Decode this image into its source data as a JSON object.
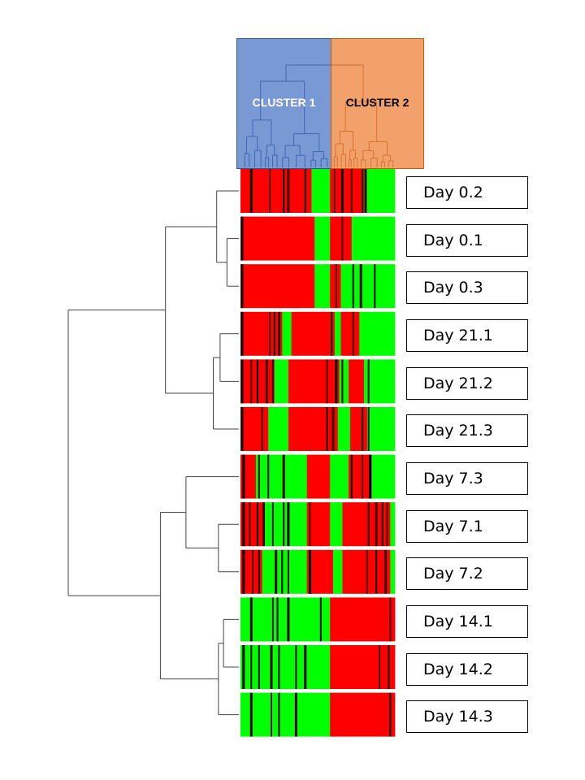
{
  "chart_data": {
    "type": "heatmap",
    "colors": {
      "low": "#00ff00",
      "high": "#ff0000",
      "mid": "#000000"
    },
    "column_clusters": [
      {
        "name": "CLUSTER 1",
        "color": "#4472c4"
      },
      {
        "name": "CLUSTER 2",
        "color": "#ed7d31"
      }
    ],
    "rows": [
      {
        "label": "Day 0.2",
        "segments": [
          [
            0,
            0.46,
            "high"
          ],
          [
            0.46,
            0.58,
            "low"
          ],
          [
            0.58,
            0.8,
            "high"
          ],
          [
            0.8,
            1,
            "low"
          ]
        ],
        "marks": [
          0.07,
          0.19,
          0.28,
          0.31,
          0.42,
          0.61,
          0.66,
          0.72,
          0.79,
          0.81
        ]
      },
      {
        "label": "Day 0.1",
        "segments": [
          [
            0,
            0.48,
            "high"
          ],
          [
            0.48,
            0.58,
            "low"
          ],
          [
            0.58,
            0.72,
            "high"
          ],
          [
            0.72,
            1,
            "low"
          ]
        ],
        "marks": [
          0.01,
          0.66
        ]
      },
      {
        "label": "Day 0.3",
        "segments": [
          [
            0,
            0.48,
            "high"
          ],
          [
            0.48,
            0.58,
            "low"
          ],
          [
            0.58,
            0.65,
            "high"
          ],
          [
            0.65,
            1,
            "low"
          ]
        ],
        "marks": [
          0.01,
          0.62,
          0.73,
          0.78,
          0.87
        ]
      },
      {
        "label": "Day 21.1",
        "segments": [
          [
            0,
            0.27,
            "high"
          ],
          [
            0.27,
            0.33,
            "low"
          ],
          [
            0.33,
            0.61,
            "high"
          ],
          [
            0.61,
            0.65,
            "low"
          ],
          [
            0.65,
            0.77,
            "high"
          ],
          [
            0.77,
            1,
            "low"
          ]
        ],
        "marks": [
          0.01,
          0.19,
          0.22,
          0.25,
          0.59,
          0.73
        ]
      },
      {
        "label": "Day 21.2",
        "segments": [
          [
            0,
            0.22,
            "high"
          ],
          [
            0.22,
            0.31,
            "low"
          ],
          [
            0.31,
            0.64,
            "high"
          ],
          [
            0.64,
            0.7,
            "low"
          ],
          [
            0.7,
            0.8,
            "high"
          ],
          [
            0.8,
            1,
            "low"
          ]
        ],
        "marks": [
          0.01,
          0.07,
          0.11,
          0.17,
          0.21,
          0.56,
          0.62,
          0.66,
          0.83
        ]
      },
      {
        "label": "Day 21.3",
        "segments": [
          [
            0,
            0.18,
            "high"
          ],
          [
            0.18,
            0.31,
            "low"
          ],
          [
            0.31,
            0.63,
            "high"
          ],
          [
            0.63,
            0.71,
            "low"
          ],
          [
            0.71,
            0.82,
            "high"
          ],
          [
            0.82,
            1,
            "low"
          ]
        ],
        "marks": [
          0.01,
          0.14,
          0.56,
          0.6,
          0.79,
          0.83
        ]
      },
      {
        "label": "Day 7.3",
        "segments": [
          [
            0,
            0.1,
            "high"
          ],
          [
            0.1,
            0.43,
            "low"
          ],
          [
            0.43,
            0.58,
            "high"
          ],
          [
            0.58,
            0.7,
            "low"
          ],
          [
            0.7,
            0.85,
            "high"
          ],
          [
            0.85,
            1,
            "low"
          ]
        ],
        "marks": [
          0.02,
          0.12,
          0.18,
          0.28,
          0.72,
          0.79,
          0.84
        ]
      },
      {
        "label": "Day 7.1",
        "segments": [
          [
            0,
            0.15,
            "high"
          ],
          [
            0.15,
            0.43,
            "low"
          ],
          [
            0.43,
            0.58,
            "high"
          ],
          [
            0.58,
            0.66,
            "low"
          ],
          [
            0.66,
            0.97,
            "high"
          ],
          [
            0.97,
            1,
            "low"
          ]
        ],
        "marks": [
          0.02,
          0.06,
          0.11,
          0.15,
          0.21,
          0.28,
          0.31,
          0.45,
          0.83,
          0.88,
          0.92,
          0.95
        ]
      },
      {
        "label": "Day 7.2",
        "segments": [
          [
            0,
            0.14,
            "high"
          ],
          [
            0.14,
            0.43,
            "low"
          ],
          [
            0.43,
            0.6,
            "high"
          ],
          [
            0.6,
            0.66,
            "low"
          ],
          [
            0.66,
            0.97,
            "high"
          ],
          [
            0.97,
            1,
            "low"
          ]
        ],
        "marks": [
          0.02,
          0.08,
          0.12,
          0.23,
          0.27,
          0.31,
          0.45,
          0.82,
          0.88,
          0.94
        ]
      },
      {
        "label": "Day 14.1",
        "segments": [
          [
            0,
            0.58,
            "low"
          ],
          [
            0.58,
            1,
            "high"
          ]
        ],
        "marks": [
          0.07,
          0.21,
          0.24,
          0.31,
          0.52,
          0.97
        ]
      },
      {
        "label": "Day 14.2",
        "segments": [
          [
            0,
            0.58,
            "low"
          ],
          [
            0.58,
            1,
            "high"
          ]
        ],
        "marks": [
          0.02,
          0.07,
          0.12,
          0.2,
          0.25,
          0.36,
          0.42,
          0.9,
          0.96
        ]
      },
      {
        "label": "Day 14.3",
        "segments": [
          [
            0,
            0.58,
            "low"
          ],
          [
            0.58,
            1,
            "high"
          ]
        ],
        "marks": [
          0.07,
          0.2,
          0.25,
          0.36,
          0.97
        ]
      }
    ],
    "row_dendrogram": {
      "leaf_order": [
        "Day 0.2",
        "Day 0.1",
        "Day 0.3",
        "Day 21.1",
        "Day 21.2",
        "Day 21.3",
        "Day 7.3",
        "Day 7.1",
        "Day 7.2",
        "Day 14.1",
        "Day 14.2",
        "Day 14.3"
      ],
      "merges": [
        {
          "a": 1,
          "b": 2,
          "height": 0.07
        },
        {
          "a": 0,
          "b": 12,
          "height": 0.13
        },
        {
          "a": 3,
          "b": 4,
          "height": 0.11
        },
        {
          "a": 14,
          "b": 5,
          "height": 0.15
        },
        {
          "a": 13,
          "b": 15,
          "height": 0.43
        },
        {
          "a": 7,
          "b": 8,
          "height": 0.12
        },
        {
          "a": 6,
          "b": 17,
          "height": 0.31
        },
        {
          "a": 9,
          "b": 10,
          "height": 0.09
        },
        {
          "a": 19,
          "b": 11,
          "height": 0.12
        },
        {
          "a": 18,
          "b": 20,
          "height": 0.46
        },
        {
          "a": 16,
          "b": 21,
          "height": 1.0
        }
      ]
    }
  }
}
